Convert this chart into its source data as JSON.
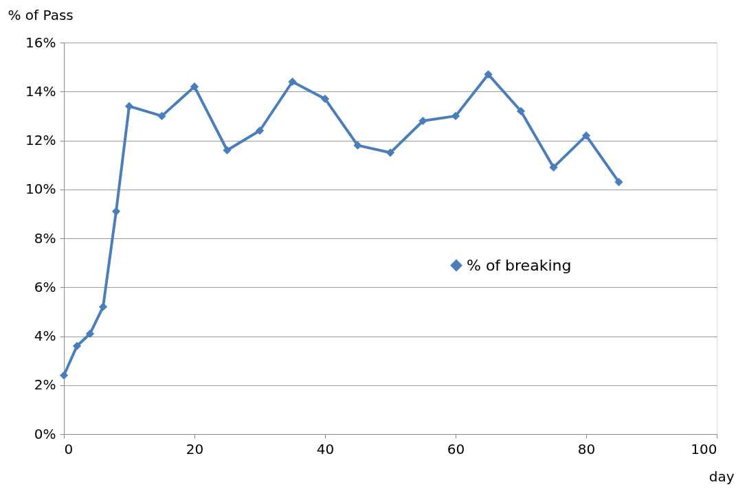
{
  "chart_data": {
    "type": "line",
    "xlabel": "day",
    "ylabel": "% of Pass",
    "x": [
      0,
      2,
      4,
      6,
      8,
      10,
      15,
      20,
      25,
      30,
      35,
      40,
      45,
      50,
      55,
      60,
      65,
      70,
      75,
      80,
      85
    ],
    "series": [
      {
        "name": "% of breaking",
        "color": "#4a7ebb",
        "values": [
          2.4,
          3.6,
          4.1,
          5.2,
          9.1,
          13.4,
          13.0,
          14.2,
          11.6,
          12.4,
          14.4,
          13.7,
          11.8,
          11.5,
          12.8,
          13.0,
          14.7,
          13.2,
          10.9,
          12.2,
          10.3
        ]
      }
    ],
    "xlim": [
      0,
      100
    ],
    "xticks": [
      0,
      20,
      40,
      60,
      80,
      100
    ],
    "ylim": [
      0,
      16
    ],
    "yticks": [
      {
        "value": 0,
        "label": "0%"
      },
      {
        "value": 2,
        "label": "2%"
      },
      {
        "value": 4,
        "label": "4%"
      },
      {
        "value": 6,
        "label": "6%"
      },
      {
        "value": 8,
        "label": "8%"
      },
      {
        "value": 10,
        "label": "10%"
      },
      {
        "value": 12,
        "label": "12%"
      },
      {
        "value": 14,
        "label": "14%"
      },
      {
        "value": 16,
        "label": "16%"
      }
    ],
    "grid": "y",
    "legend": "right",
    "marker": "diamond",
    "line_style": "solid"
  }
}
